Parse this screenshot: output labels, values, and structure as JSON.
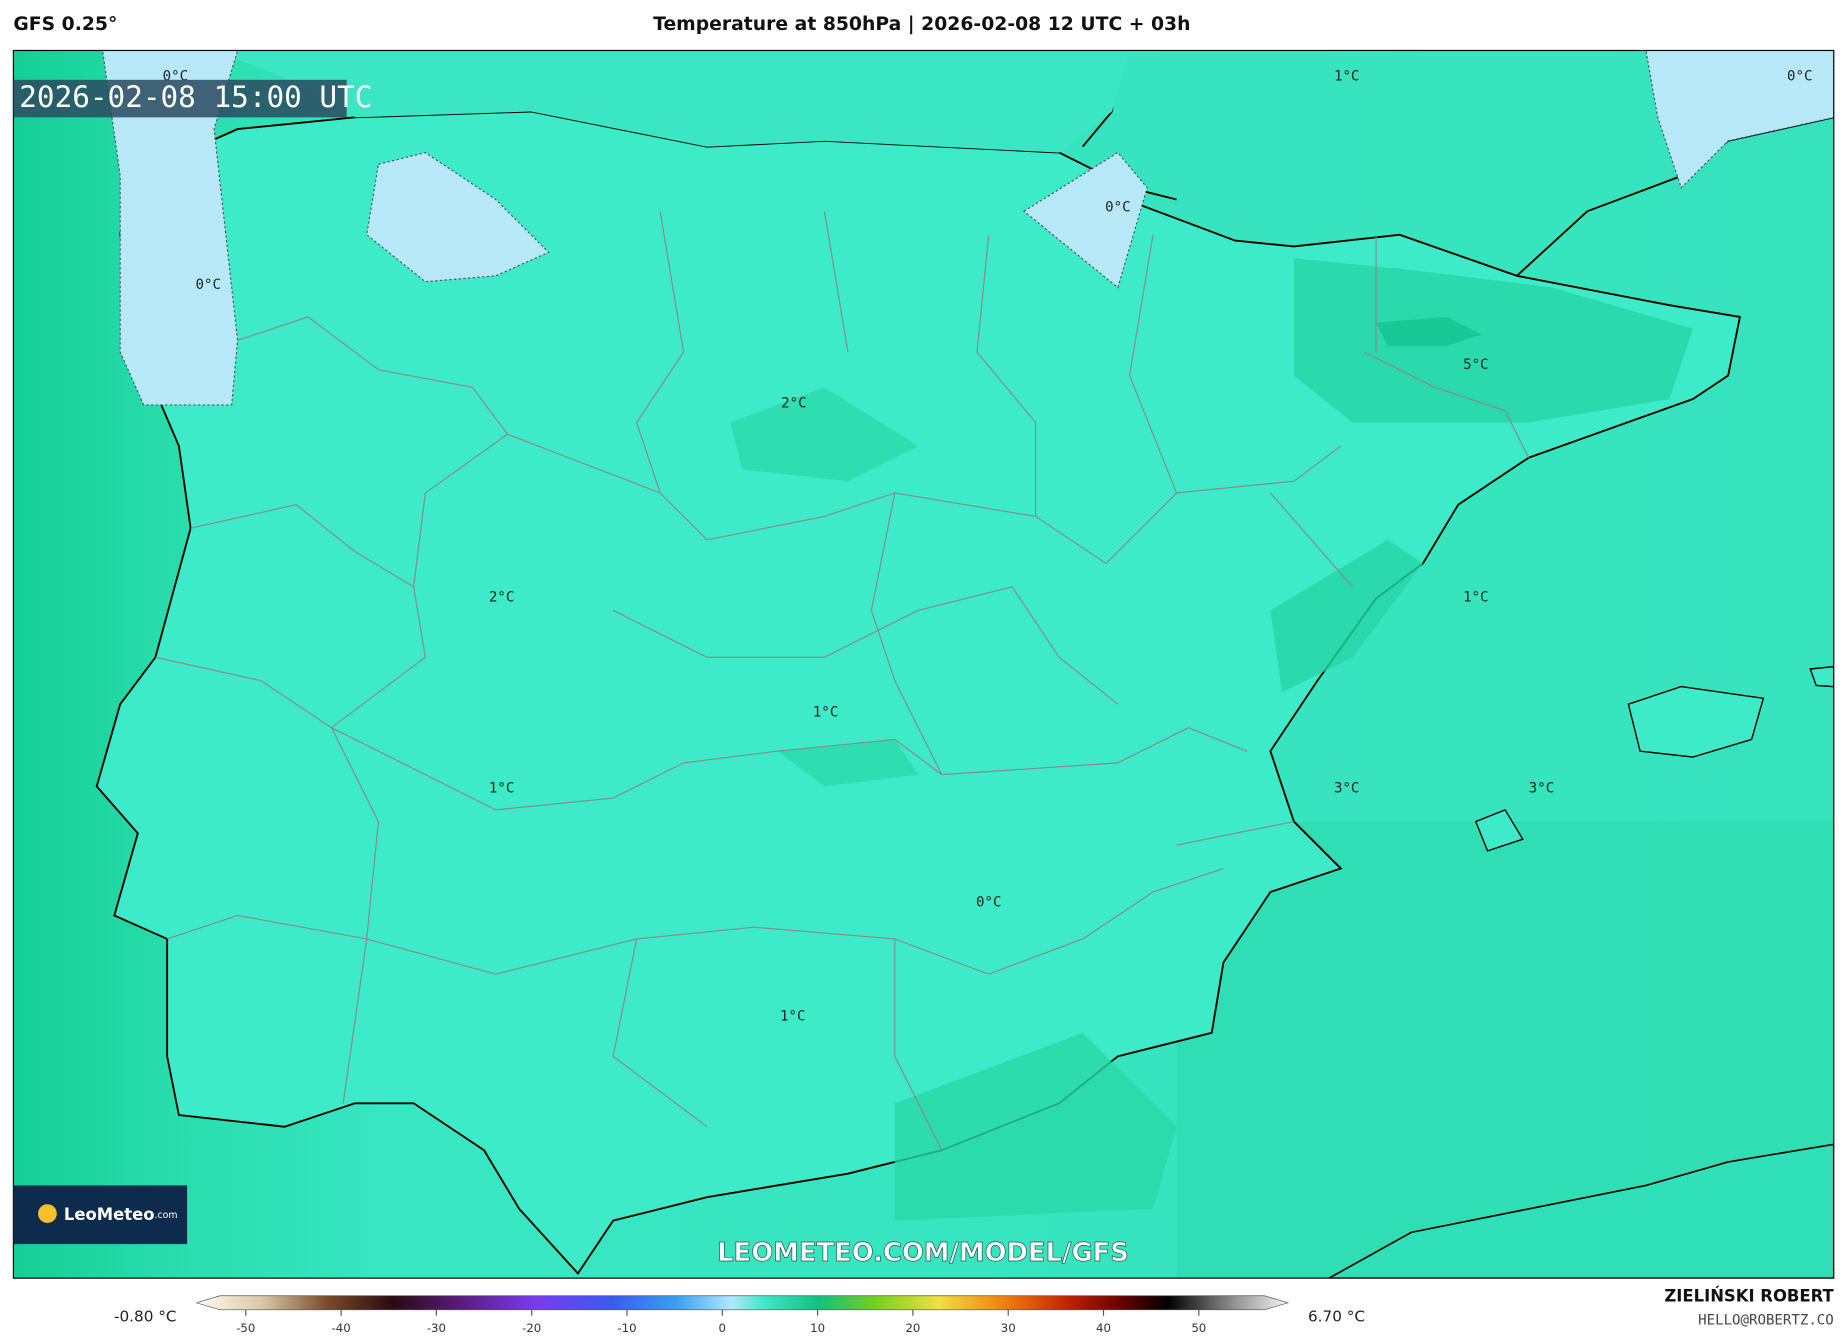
{
  "header": {
    "model": "GFS 0.25°",
    "title": "Temperature at 850hPa | 2026-02-08 12 UTC + 03h"
  },
  "map": {
    "timestamp": "2026-02-08 15:00 UTC",
    "contour_labels": [
      "0°C",
      "0°C",
      "0°C",
      "0°C",
      "1°C",
      "1°C",
      "1°C",
      "1°C",
      "1°C",
      "2°C",
      "2°C",
      "5°C",
      "3°C",
      "3°C",
      "0°C"
    ],
    "watermark": "LEOMETEO.COM/MODEL/GFS",
    "logo": {
      "name": "LeoMeteo",
      "suffix": ".com"
    }
  },
  "colorbar": {
    "min_label": "-0.80 °C",
    "max_label": "6.70 °C",
    "ticks": [
      -50,
      -40,
      -30,
      -20,
      -10,
      0,
      10,
      20,
      30,
      40,
      50
    ]
  },
  "footer": {
    "author": "ZIELIŃSKI ROBERT",
    "email": "HELLO@ROBERTZ.CO"
  }
}
